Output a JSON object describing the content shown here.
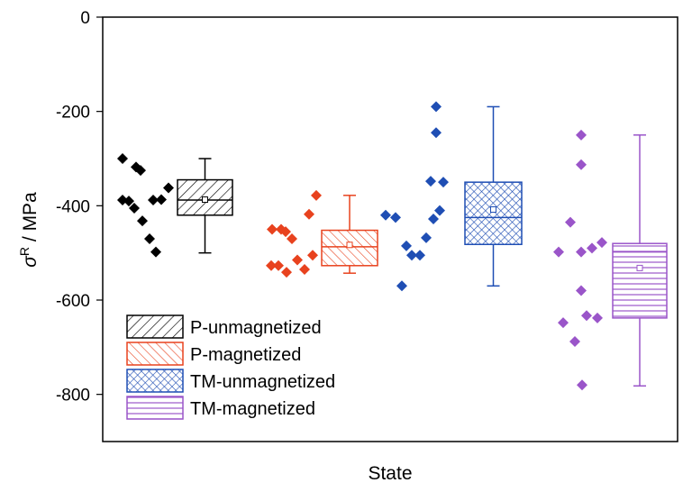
{
  "chart_data": {
    "type": "box",
    "title": "",
    "xlabel": "State",
    "ylabel": {
      "symbol": "σ",
      "superscript": "R",
      "unit": " / MPa"
    },
    "ylim": [
      -900,
      0
    ],
    "yticks": [
      0,
      -200,
      -400,
      -600,
      -800
    ],
    "grid": false,
    "legend_position": "bottom-left",
    "series": [
      {
        "name": "P-unmagnetized",
        "color": "#000000",
        "pattern": "diagonal-left",
        "points": [
          -388,
          -390,
          -405,
          -432,
          -470,
          -498,
          -300,
          -318,
          -325,
          -388,
          -387,
          -362
        ],
        "box": {
          "q1": -420,
          "median": -388,
          "q3": -345,
          "mean": -387,
          "whisker_low": -500,
          "whisker_high": -300
        }
      },
      {
        "name": "P-magnetized",
        "color": "#e8421e",
        "pattern": "diagonal-right",
        "points": [
          -527,
          -527,
          -450,
          -450,
          -470,
          -541,
          -515,
          -535,
          -455,
          -418,
          -378,
          -505
        ],
        "box": {
          "q1": -527,
          "median": -487,
          "q3": -452,
          "mean": -483,
          "whisker_low": -543,
          "whisker_high": -378
        }
      },
      {
        "name": "TM-unmagnetized",
        "color": "#1f4eb4",
        "pattern": "crosshatch",
        "points": [
          -570,
          -420,
          -425,
          -485,
          -505,
          -505,
          -190,
          -245,
          -348,
          -350,
          -410,
          -468,
          -428
        ],
        "box": {
          "q1": -482,
          "median": -425,
          "q3": -350,
          "mean": -408,
          "whisker_low": -570,
          "whisker_high": -190
        }
      },
      {
        "name": "TM-magnetized",
        "color": "#9a55c9",
        "pattern": "horizontal",
        "points": [
          -498,
          -648,
          -688,
          -780,
          -250,
          -313,
          -435,
          -498,
          -580,
          -633,
          -490,
          -638,
          -478
        ],
        "box": {
          "q1": -638,
          "median": -498,
          "q3": -480,
          "mean": -532,
          "whisker_low": -782,
          "whisker_high": -250
        }
      }
    ]
  }
}
